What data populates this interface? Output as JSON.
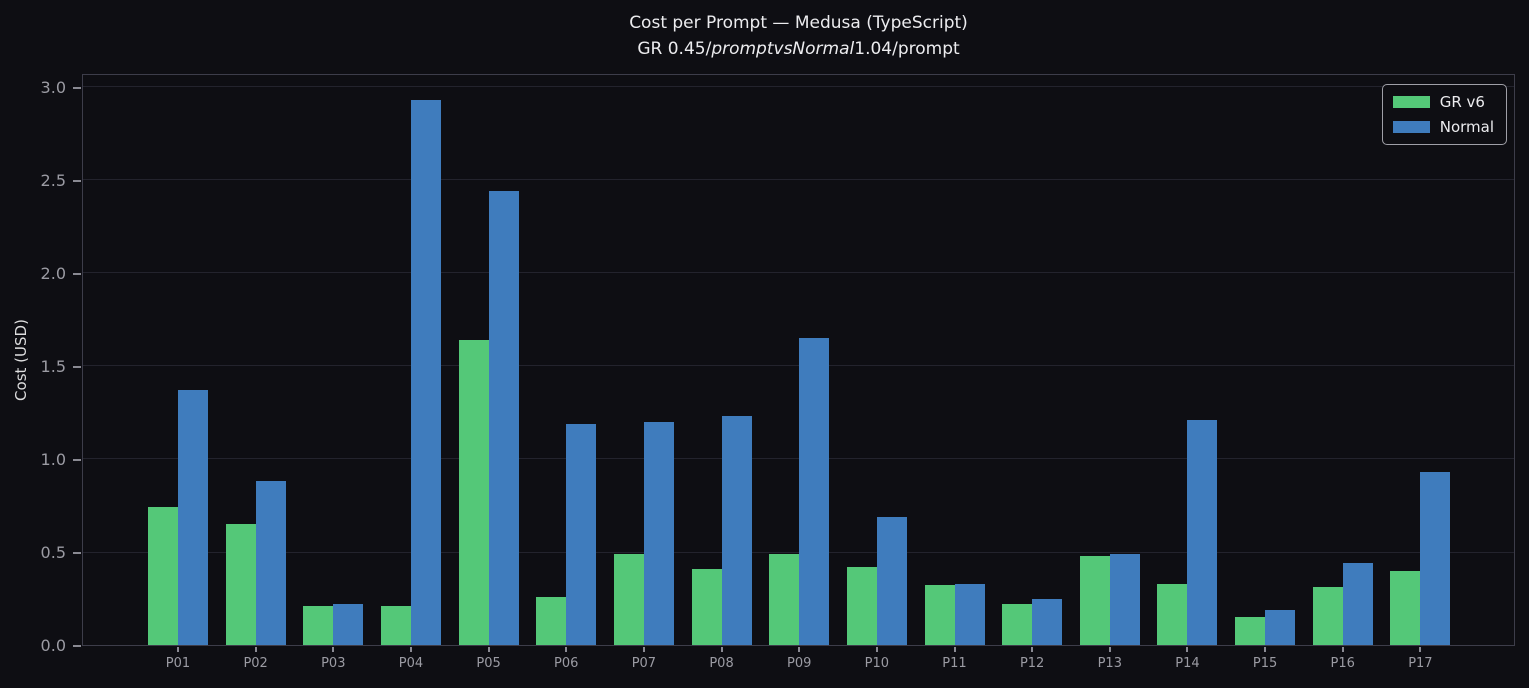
{
  "title": "Cost per Prompt — Medusa (TypeScript)",
  "subtitle": {
    "prefix": "GR 0.45/",
    "italic": "promptvsNormal",
    "suffix": "1.04/prompt"
  },
  "ylabel": "Cost (USD)",
  "colors": {
    "background": "#0e0e13",
    "spine": "#3d3d4a",
    "grid": "#23232d",
    "tick_label": "#9b9ba3",
    "title_text": "#ececef",
    "gr_v6_green": "#54c878",
    "normal_blue": "#3f7cbd",
    "legend_border": "#9f9fa7"
  },
  "legend": {
    "position": "upper right",
    "entries": [
      {
        "label": "GR v6",
        "color": "#54c878"
      },
      {
        "label": "Normal",
        "color": "#3f7cbd"
      }
    ]
  },
  "chart_data": {
    "type": "bar",
    "title": "Cost per Prompt — Medusa (TypeScript)",
    "subtitle_rendered": "GR 0.45/promptvsNormal1.04/prompt",
    "xlabel": "",
    "ylabel": "Cost (USD)",
    "categories": [
      "P01",
      "P02",
      "P03",
      "P04",
      "P05",
      "P06",
      "P07",
      "P08",
      "P09",
      "P10",
      "P11",
      "P12",
      "P13",
      "P14",
      "P15",
      "P16",
      "P17"
    ],
    "series": [
      {
        "name": "GR v6",
        "color": "#54c878",
        "values": [
          0.74,
          0.65,
          0.21,
          0.21,
          1.64,
          0.26,
          0.49,
          0.41,
          0.49,
          0.42,
          0.32,
          0.22,
          0.48,
          0.33,
          0.15,
          0.31,
          0.4
        ]
      },
      {
        "name": "Normal",
        "color": "#3f7cbd",
        "values": [
          1.37,
          0.88,
          0.22,
          2.93,
          2.44,
          1.19,
          1.2,
          1.23,
          1.65,
          0.69,
          0.33,
          0.25,
          0.49,
          1.21,
          0.19,
          0.44,
          0.93
        ]
      }
    ],
    "ylim": [
      0,
      3.075
    ],
    "yticks": [
      0.0,
      0.5,
      1.0,
      1.5,
      2.0,
      2.5,
      3.0
    ],
    "grid": true,
    "legend_position": "upper right"
  }
}
